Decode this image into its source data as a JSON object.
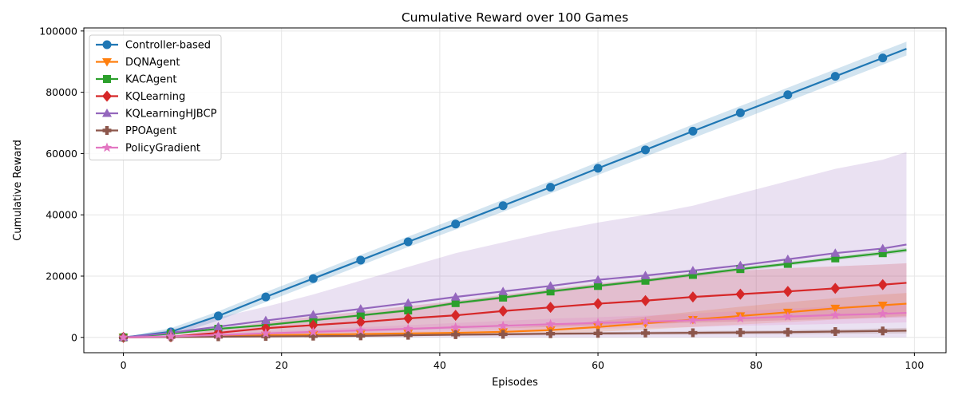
{
  "chart_data": {
    "type": "line",
    "title": "Cumulative Reward over 100 Games",
    "xlabel": "Episodes",
    "ylabel": "Cumulative Reward",
    "xlim": [
      -5,
      104
    ],
    "ylim": [
      -5000,
      101000
    ],
    "xticks": [
      0,
      20,
      40,
      60,
      80,
      100
    ],
    "yticks": [
      0,
      20000,
      40000,
      60000,
      80000,
      100000
    ],
    "grid": true,
    "legend_position": "upper-left",
    "shaded_band": "uncertainty range around each series",
    "x": [
      0,
      6,
      12,
      18,
      24,
      30,
      36,
      42,
      48,
      54,
      60,
      66,
      72,
      78,
      84,
      90,
      96,
      99
    ],
    "series": [
      {
        "name": "Controller-based",
        "color": "#1f77b4",
        "marker": "circle",
        "values": [
          0,
          1800,
          7000,
          13200,
          19200,
          25200,
          31200,
          37000,
          43000,
          49000,
          55200,
          61200,
          67300,
          73300,
          79200,
          85200,
          91200,
          94200
        ],
        "band_lower": [
          0,
          500,
          5500,
          11500,
          17500,
          23500,
          29500,
          35200,
          41000,
          47000,
          53000,
          59000,
          65000,
          71000,
          77000,
          83000,
          89000,
          92000
        ],
        "band_upper": [
          0,
          3000,
          8500,
          14800,
          20800,
          26900,
          32900,
          38800,
          44900,
          51000,
          57200,
          63300,
          69500,
          75500,
          81500,
          87500,
          93500,
          96500
        ]
      },
      {
        "name": "DQNAgent",
        "color": "#ff7f0e",
        "marker": "triangle-down",
        "values": [
          0,
          200,
          500,
          700,
          900,
          1100,
          1300,
          1500,
          1800,
          2400,
          3400,
          4600,
          5800,
          7000,
          8200,
          9500,
          10500,
          11000
        ],
        "band_lower": [
          0,
          100,
          300,
          400,
          500,
          700,
          800,
          900,
          1000,
          1300,
          1800,
          2600,
          3400,
          4200,
          5000,
          5800,
          6600,
          7000
        ],
        "band_upper": [
          0,
          400,
          800,
          1100,
          1400,
          1700,
          2000,
          2400,
          3000,
          4000,
          5300,
          6800,
          8400,
          10000,
          11500,
          12800,
          14000,
          14500
        ]
      },
      {
        "name": "KACAgent",
        "color": "#2ca02c",
        "marker": "square",
        "values": [
          0,
          1200,
          2800,
          4000,
          5600,
          7200,
          8800,
          11200,
          13000,
          15000,
          16800,
          18500,
          20400,
          22300,
          24000,
          25800,
          27500,
          28500
        ],
        "band_lower": [
          0,
          1000,
          2500,
          3700,
          5200,
          6800,
          8300,
          10700,
          12500,
          14500,
          16300,
          18000,
          19800,
          21700,
          23400,
          25200,
          26800,
          27800
        ],
        "band_upper": [
          0,
          1400,
          3100,
          4400,
          6000,
          7600,
          9300,
          11700,
          13500,
          15500,
          17300,
          19000,
          21000,
          22900,
          24600,
          26400,
          28200,
          29200
        ]
      },
      {
        "name": "KQLearning",
        "color": "#d62728",
        "marker": "diamond",
        "values": [
          0,
          200,
          1500,
          3000,
          4000,
          5000,
          6200,
          7200,
          8600,
          9800,
          11000,
          12000,
          13200,
          14100,
          15000,
          16000,
          17200,
          17800
        ],
        "band_lower": [
          0,
          100,
          500,
          1000,
          1300,
          1700,
          2200,
          2600,
          3000,
          3400,
          3900,
          4300,
          4800,
          5200,
          5600,
          6000,
          6400,
          6600
        ],
        "band_upper": [
          0,
          500,
          2600,
          5000,
          6800,
          8400,
          10200,
          11900,
          13900,
          15800,
          17600,
          19200,
          20900,
          21800,
          22600,
          23200,
          23800,
          24200
        ]
      },
      {
        "name": "KQLearningHJBCP",
        "color": "#9467bd",
        "marker": "triangle-up",
        "values": [
          0,
          1500,
          3500,
          5500,
          7400,
          9300,
          11200,
          13200,
          15000,
          16800,
          18800,
          20200,
          21800,
          23500,
          25500,
          27500,
          29000,
          30300
        ],
        "band_lower": [
          0,
          0,
          0,
          0,
          0,
          0,
          0,
          0,
          0,
          0,
          0,
          0,
          0,
          0,
          0,
          0,
          0,
          0
        ],
        "band_upper": [
          0,
          2500,
          6500,
          10000,
          14000,
          18500,
          23000,
          27500,
          31000,
          34500,
          37500,
          40000,
          43000,
          47000,
          51000,
          55000,
          58000,
          60500
        ]
      },
      {
        "name": "PPOAgent",
        "color": "#8c564b",
        "marker": "plus",
        "values": [
          0,
          100,
          200,
          300,
          400,
          500,
          700,
          900,
          1000,
          1200,
          1300,
          1400,
          1500,
          1600,
          1700,
          1900,
          2100,
          2200
        ],
        "band_lower": [
          0,
          50,
          100,
          150,
          200,
          300,
          400,
          500,
          600,
          700,
          800,
          850,
          900,
          1000,
          1050,
          1150,
          1250,
          1300
        ],
        "band_upper": [
          0,
          200,
          300,
          450,
          600,
          750,
          1000,
          1200,
          1400,
          1600,
          1750,
          1900,
          2100,
          2200,
          2350,
          2600,
          2900,
          3100
        ]
      },
      {
        "name": "PolicyGradient",
        "color": "#e377c2",
        "marker": "star",
        "values": [
          0,
          300,
          800,
          1300,
          1800,
          2300,
          2800,
          3300,
          3800,
          4300,
          4700,
          5100,
          5600,
          6200,
          6800,
          7300,
          7700,
          8000
        ],
        "band_lower": [
          0,
          150,
          400,
          700,
          1000,
          1300,
          1600,
          1900,
          2200,
          2500,
          2800,
          3100,
          3400,
          3800,
          4100,
          4400,
          4700,
          4900
        ],
        "band_upper": [
          0,
          450,
          1200,
          1900,
          2600,
          3300,
          4000,
          4700,
          5400,
          6100,
          6600,
          7100,
          7800,
          8600,
          9400,
          10100,
          10700,
          11100
        ]
      }
    ]
  }
}
